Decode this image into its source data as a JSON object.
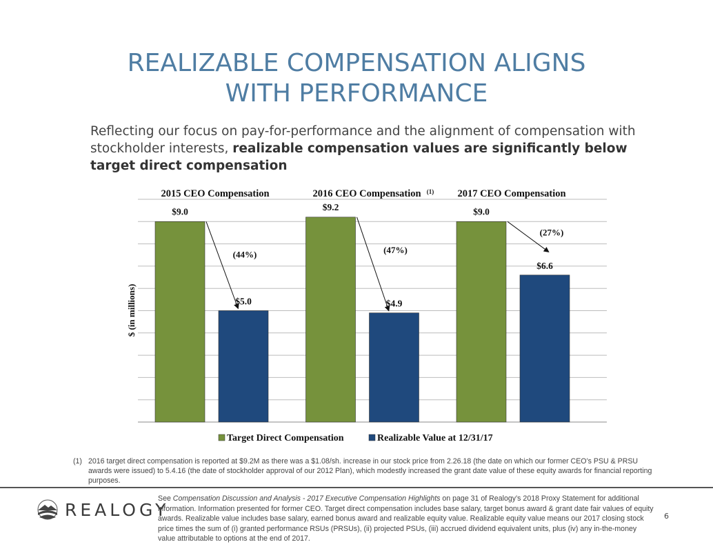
{
  "header": {
    "title_line1": "REALIZABLE COMPENSATION ALIGNS",
    "title_line2": "WITH PERFORMANCE"
  },
  "intro": {
    "text": "Reflecting our focus on pay-for-performance and the alignment of compensation with stockholder interests, ",
    "bold": "realizable compensation values are significantly below target direct compensation"
  },
  "chart_data": {
    "type": "bar",
    "ylabel": "$ (in millions)",
    "ylim": [
      0,
      10
    ],
    "grid": true,
    "legend_placement": "bottom",
    "groups": [
      {
        "title": "2015 CEO Compensation",
        "footnote_mark": "",
        "target": 9.0,
        "target_label": "$9.0",
        "realizable": 5.0,
        "realizable_label": "$5.0",
        "change_label": "(44%)"
      },
      {
        "title": "2016 CEO Compensation",
        "footnote_mark": "(1)",
        "target": 9.2,
        "target_label": "$9.2",
        "realizable": 4.9,
        "realizable_label": "$4.9",
        "change_label": "(47%)"
      },
      {
        "title": "2017 CEO Compensation",
        "footnote_mark": "",
        "target": 9.0,
        "target_label": "$9.0",
        "realizable": 6.6,
        "realizable_label": "$6.6",
        "change_label": "(27%)"
      }
    ],
    "series": [
      {
        "name": "Target Direct Compensation",
        "color": "#76923c"
      },
      {
        "name": "Realizable Value at 12/31/17",
        "color": "#1f497d"
      }
    ]
  },
  "footnote": {
    "number": "(1)",
    "text": "2016 target direct compensation is reported at $9.2M as there was a $1.08/sh. increase in our stock price from 2.26.18 (the date on which our former CEO’s PSU & PRSU awards were issued) to 5.4.16 (the date of stockholder approval of our 2012 Plan), which modestly increased the grant date value of these equity awards for financial reporting purposes."
  },
  "footer": {
    "logo_text": "REALOGY",
    "source_pre": "See ",
    "source_italic": "Compensation Discussion and Analysis - 2017 Executive Compensation Highlights",
    "source_post": " on page 31 of Realogy’s 2018 Proxy Statement for additional information. Information presented for former CEO. Target direct compensation includes base salary, target bonus award & grant date fair values of equity awards. Realizable value includes base salary, earned bonus award and realizable equity value. Realizable equity value means our 2017 closing stock price times the sum of (i) granted performance RSUs (PRSUs), (ii) projected PSUs, (iii) accrued dividend equivalent units, plus (iv) any in-the-money value attributable to options at the end of 2017.",
    "page_number": "6"
  }
}
